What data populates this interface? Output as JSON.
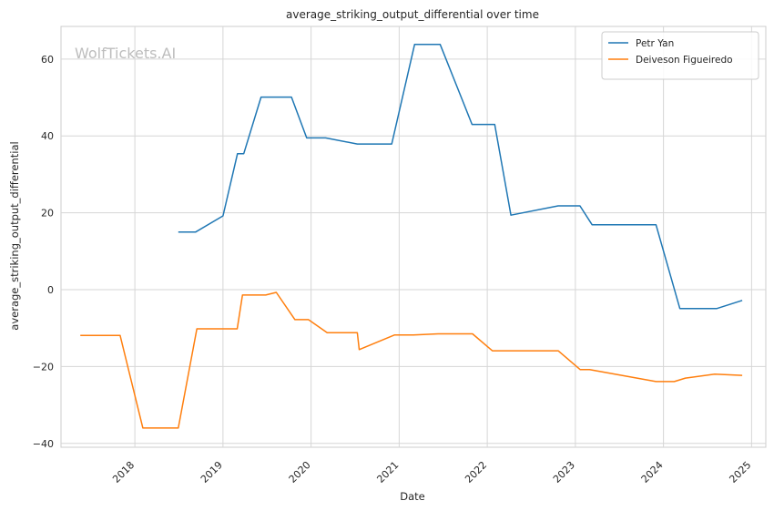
{
  "chart_data": {
    "type": "line",
    "title": "average_striking_output_differential over time",
    "xlabel": "Date",
    "ylabel": "average_striking_output_differential",
    "watermark": "WolfTickets.AI",
    "xlim": [
      "2017-03-01",
      "2025-03-01"
    ],
    "ylim": [
      -41,
      68.5
    ],
    "x_ticks": [
      "2018",
      "2019",
      "2020",
      "2021",
      "2022",
      "2023",
      "2024",
      "2025"
    ],
    "y_ticks": [
      60,
      40,
      20,
      0,
      -20,
      -40
    ],
    "y_tick_labels": [
      "60",
      "40",
      "20",
      "0",
      "−20",
      "−40"
    ],
    "grid": true,
    "legend_position": "top-right",
    "series": [
      {
        "name": "Petr Yan",
        "color": "#1f77b4",
        "points": [
          [
            "2018-06-30",
            15.0
          ],
          [
            "2018-09-10",
            15.0
          ],
          [
            "2019-01-01",
            19.2
          ],
          [
            "2019-03-02",
            35.4
          ],
          [
            "2019-03-28",
            35.4
          ],
          [
            "2019-06-08",
            50.1
          ],
          [
            "2019-10-12",
            50.1
          ],
          [
            "2019-12-14",
            39.5
          ],
          [
            "2020-03-01",
            39.5
          ],
          [
            "2020-07-11",
            37.9
          ],
          [
            "2020-12-01",
            37.9
          ],
          [
            "2021-03-06",
            63.8
          ],
          [
            "2021-06-20",
            63.8
          ],
          [
            "2021-10-30",
            43.0
          ],
          [
            "2022-02-01",
            43.0
          ],
          [
            "2022-04-09",
            19.4
          ],
          [
            "2022-10-22",
            21.8
          ],
          [
            "2023-01-20",
            21.8
          ],
          [
            "2023-03-11",
            16.9
          ],
          [
            "2023-12-01",
            16.9
          ],
          [
            "2024-03-09",
            -4.9
          ],
          [
            "2024-08-10",
            -4.9
          ],
          [
            "2024-11-23",
            -2.8
          ]
        ]
      },
      {
        "name": "Deiveson Figueiredo",
        "color": "#ff7f0e",
        "points": [
          [
            "2017-05-20",
            -11.9
          ],
          [
            "2017-11-01",
            -11.9
          ],
          [
            "2018-02-03",
            -36.0
          ],
          [
            "2018-06-30",
            -36.0
          ],
          [
            "2018-09-15",
            -10.2
          ],
          [
            "2019-03-01",
            -10.2
          ],
          [
            "2019-03-23",
            -1.4
          ],
          [
            "2019-06-27",
            -1.4
          ],
          [
            "2019-08-10",
            -0.7
          ],
          [
            "2019-10-26",
            -7.8
          ],
          [
            "2019-12-21",
            -7.8
          ],
          [
            "2020-03-08",
            -11.2
          ],
          [
            "2020-07-11",
            -11.2
          ],
          [
            "2020-07-19",
            -15.6
          ],
          [
            "2020-12-12",
            -11.8
          ],
          [
            "2021-03-01",
            -11.8
          ],
          [
            "2021-06-12",
            -11.5
          ],
          [
            "2021-11-01",
            -11.5
          ],
          [
            "2022-01-22",
            -15.9
          ],
          [
            "2022-10-22",
            -15.9
          ],
          [
            "2023-01-21",
            -20.8
          ],
          [
            "2023-03-01",
            -20.8
          ],
          [
            "2023-12-01",
            -23.9
          ],
          [
            "2024-02-15",
            -23.9
          ],
          [
            "2024-04-01",
            -23.0
          ],
          [
            "2024-08-01",
            -22.0
          ],
          [
            "2024-11-23",
            -22.3
          ]
        ]
      }
    ]
  }
}
